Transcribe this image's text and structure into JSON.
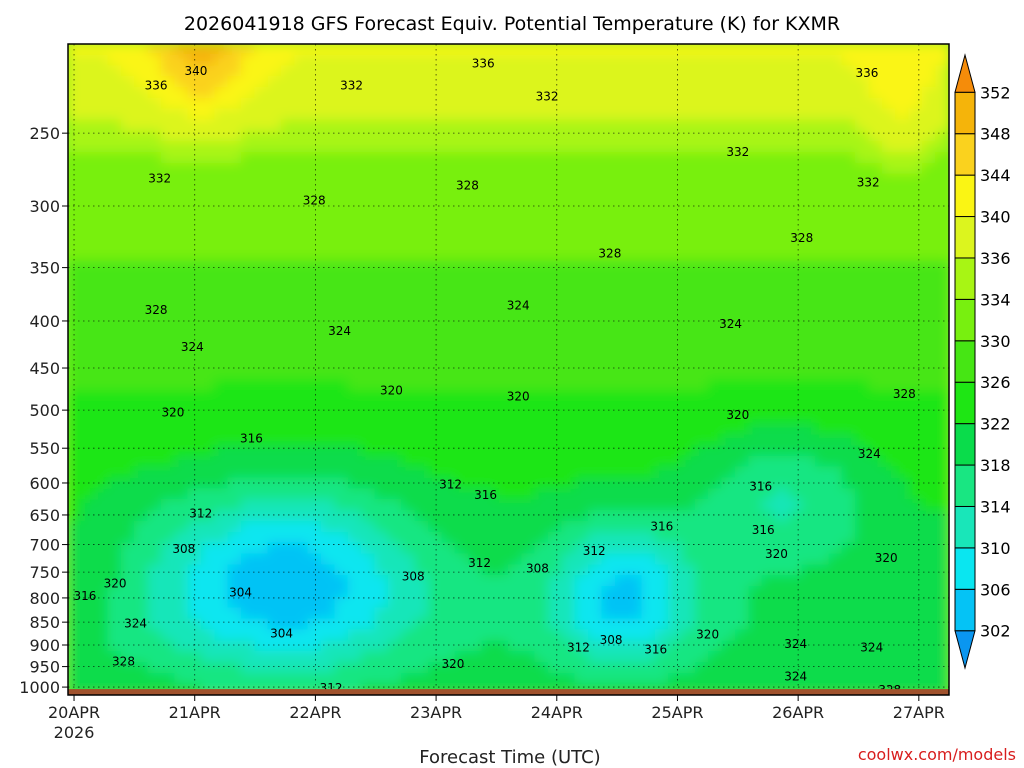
{
  "chart_data": {
    "type": "heatmap",
    "title": "2026041918 GFS Forecast Equiv. Potential Temperature (K) for KXMR",
    "xlabel": "Forecast Time (UTC)",
    "ylabel": "",
    "x_ticks": [
      {
        "label": "20APR",
        "sub": "2026",
        "day": 0
      },
      {
        "label": "21APR",
        "sub": "",
        "day": 1
      },
      {
        "label": "22APR",
        "sub": "",
        "day": 2
      },
      {
        "label": "23APR",
        "sub": "",
        "day": 3
      },
      {
        "label": "24APR",
        "sub": "",
        "day": 4
      },
      {
        "label": "25APR",
        "sub": "",
        "day": 5
      },
      {
        "label": "26APR",
        "sub": "",
        "day": 6
      },
      {
        "label": "27APR",
        "sub": "",
        "day": 7
      }
    ],
    "xlim_days": [
      -0.05,
      7.25
    ],
    "y_ticks": [
      250,
      300,
      350,
      400,
      450,
      500,
      550,
      600,
      650,
      700,
      750,
      800,
      850,
      900,
      950,
      1000
    ],
    "ylim_hpa": [
      200,
      1020
    ],
    "y_scale": "log",
    "grid": "dotted",
    "colorbar": {
      "levels": [
        302,
        306,
        310,
        314,
        318,
        322,
        326,
        330,
        334,
        336,
        340,
        344,
        348,
        352
      ],
      "colors": [
        "#0a96f0",
        "#05c3f5",
        "#0ae6f0",
        "#19e6b9",
        "#19e682",
        "#0adc4b",
        "#1ee614",
        "#46e614",
        "#78f00f",
        "#a8f514",
        "#dcf51e",
        "#faf514",
        "#fad21e",
        "#f5b40a",
        "#f58c0a"
      ],
      "placement": "right"
    },
    "contour_labels": [
      {
        "text": "340",
        "day": 1.01,
        "p": 214
      },
      {
        "text": "336",
        "day": 0.68,
        "p": 222
      },
      {
        "text": "336",
        "day": 3.39,
        "p": 210
      },
      {
        "text": "336",
        "day": 6.57,
        "p": 215
      },
      {
        "text": "332",
        "day": 2.3,
        "p": 222
      },
      {
        "text": "332",
        "day": 3.92,
        "p": 228
      },
      {
        "text": "332",
        "day": 5.5,
        "p": 262
      },
      {
        "text": "332",
        "day": 0.71,
        "p": 280
      },
      {
        "text": "332",
        "day": 6.58,
        "p": 283
      },
      {
        "text": "328",
        "day": 3.26,
        "p": 285
      },
      {
        "text": "328",
        "day": 1.99,
        "p": 296
      },
      {
        "text": "328",
        "day": 4.44,
        "p": 338
      },
      {
        "text": "328",
        "day": 6.03,
        "p": 325
      },
      {
        "text": "328",
        "day": 0.68,
        "p": 389
      },
      {
        "text": "328",
        "day": 6.88,
        "p": 480
      },
      {
        "text": "324",
        "day": 0.98,
        "p": 427
      },
      {
        "text": "324",
        "day": 2.2,
        "p": 410
      },
      {
        "text": "324",
        "day": 3.68,
        "p": 385
      },
      {
        "text": "324",
        "day": 5.44,
        "p": 403
      },
      {
        "text": "324",
        "day": 6.59,
        "p": 558
      },
      {
        "text": "320",
        "day": 2.63,
        "p": 476
      },
      {
        "text": "320",
        "day": 3.68,
        "p": 483
      },
      {
        "text": "320",
        "day": 0.82,
        "p": 503
      },
      {
        "text": "320",
        "day": 5.5,
        "p": 506
      },
      {
        "text": "316",
        "day": 1.47,
        "p": 537
      },
      {
        "text": "316",
        "day": 3.41,
        "p": 618
      },
      {
        "text": "316",
        "day": 5.69,
        "p": 605
      },
      {
        "text": "316",
        "day": 4.87,
        "p": 669
      },
      {
        "text": "316",
        "day": 5.71,
        "p": 675
      },
      {
        "text": "312",
        "day": 1.05,
        "p": 648
      },
      {
        "text": "312",
        "day": 3.12,
        "p": 602
      },
      {
        "text": "312",
        "day": 4.31,
        "p": 711
      },
      {
        "text": "312",
        "day": 3.36,
        "p": 733
      },
      {
        "text": "312",
        "day": 2.13,
        "p": 1002
      },
      {
        "text": "308",
        "day": 0.91,
        "p": 708
      },
      {
        "text": "308",
        "day": 2.81,
        "p": 758
      },
      {
        "text": "308",
        "day": 3.84,
        "p": 743
      },
      {
        "text": "308",
        "day": 4.45,
        "p": 889
      },
      {
        "text": "304",
        "day": 1.38,
        "p": 789
      },
      {
        "text": "304",
        "day": 1.72,
        "p": 874
      },
      {
        "text": "312",
        "day": 4.18,
        "p": 906
      },
      {
        "text": "316",
        "day": 4.82,
        "p": 910
      },
      {
        "text": "320",
        "day": 5.25,
        "p": 877
      },
      {
        "text": "320",
        "day": 3.14,
        "p": 944
      },
      {
        "text": "320",
        "day": 0.34,
        "p": 772
      },
      {
        "text": "316",
        "day": 0.09,
        "p": 796
      },
      {
        "text": "324",
        "day": 0.51,
        "p": 853
      },
      {
        "text": "328",
        "day": 0.41,
        "p": 938
      },
      {
        "text": "324",
        "day": 5.98,
        "p": 898
      },
      {
        "text": "324",
        "day": 6.61,
        "p": 906
      },
      {
        "text": "324",
        "day": 5.98,
        "p": 974
      },
      {
        "text": "320",
        "day": 6.73,
        "p": 724
      },
      {
        "text": "320",
        "day": 5.82,
        "p": 717
      },
      {
        "text": "328",
        "day": 6.76,
        "p": 1007
      }
    ],
    "ground": {
      "color": "#a0522d",
      "p_top": 1005
    }
  },
  "credit": "coolwx.com/models"
}
